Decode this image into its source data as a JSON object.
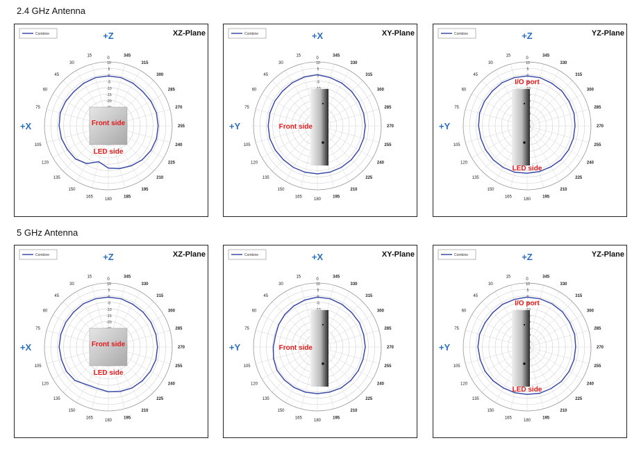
{
  "sections": [
    {
      "title": "2.4 GHz Antenna"
    },
    {
      "title": "5 GHz Antenna"
    }
  ],
  "chart_data": [
    {
      "type": "polar",
      "section": "2.4 GHz Antenna",
      "plane": "XZ-Plane",
      "legend": "Combine",
      "axis_top": "+Z",
      "axis_left": "+X",
      "device_labels": [
        "Front side",
        "LED side"
      ],
      "r_ticks": [
        "10",
        "5",
        "0",
        "-5",
        "-10",
        "-15",
        "-20",
        "-25",
        "-30",
        "-35",
        "-40"
      ],
      "angle_labels": [
        "0",
        "15",
        "30",
        "45",
        "60",
        "75",
        "90",
        "105",
        "120",
        "135",
        "150",
        "165",
        "180",
        "195",
        "210",
        "225",
        "240",
        "255",
        "270",
        "285",
        "300",
        "315",
        "330",
        "345"
      ],
      "angle_label_display": {
        "90": "+X0",
        "330": "315",
        "315": "300",
        "300": "285",
        "285": "270",
        "270": "255",
        "255": "240",
        "240": "225",
        "225": "210",
        "210": "195",
        "195": "185"
      },
      "rlim": [
        -40,
        10
      ],
      "series": [
        {
          "name": "Combine",
          "color": "#3a4aa8",
          "values": [
            -1,
            -1,
            -1.5,
            -2,
            -1.5,
            -1,
            -1.5,
            -2,
            -3,
            -3.5,
            -6,
            -11,
            -7,
            -5.5,
            -4,
            -2.5,
            -1.5,
            -1,
            -1,
            -1,
            -1.5,
            -2,
            -1.5,
            -1
          ]
        }
      ]
    },
    {
      "type": "polar",
      "section": "2.4 GHz Antenna",
      "plane": "XY-Plane",
      "legend": "Combine",
      "axis_top": "+X",
      "axis_left": "+Y",
      "device_labels": [
        "Front side"
      ],
      "r_ticks": [
        "10",
        "5",
        "0",
        "-5",
        "-10",
        "-15",
        "-20",
        "-25",
        "-30",
        "-35",
        "-40"
      ],
      "angle_labels": [
        "0",
        "15",
        "30",
        "45",
        "60",
        "75",
        "90",
        "105",
        "120",
        "135",
        "150",
        "165",
        "180",
        "195",
        "210",
        "225",
        "240",
        "255",
        "270",
        "285",
        "300",
        "315",
        "330",
        "345"
      ],
      "angle_label_display": {
        "90": "+Y0"
      },
      "rlim": [
        -40,
        10
      ],
      "series": [
        {
          "name": "Combine",
          "color": "#3a4aa8",
          "values": [
            0,
            -0.5,
            -1,
            -1.5,
            -1.5,
            -1.5,
            -1.5,
            -1.5,
            -2,
            -2.5,
            -2.5,
            -2.5,
            -2.5,
            -2.5,
            -2.5,
            -2.5,
            -2.5,
            -2.5,
            -2.5,
            -2.5,
            -2.5,
            -2,
            -1.5,
            -1
          ]
        }
      ]
    },
    {
      "type": "polar",
      "section": "2.4 GHz Antenna",
      "plane": "YZ-Plane",
      "legend": "Combine",
      "axis_top": "+Z",
      "axis_left": "+Y",
      "device_labels": [
        "I/O port",
        "LED side"
      ],
      "r_ticks": [
        "10",
        "5",
        "0",
        "-5",
        "-10",
        "-15",
        "-20",
        "-25",
        "-30",
        "-35",
        "-40"
      ],
      "angle_labels": [
        "0",
        "15",
        "30",
        "45",
        "60",
        "75",
        "90",
        "105",
        "120",
        "135",
        "150",
        "165",
        "180",
        "195",
        "210",
        "225",
        "240",
        "255",
        "270",
        "285",
        "300",
        "315",
        "330",
        "345"
      ],
      "angle_label_display": {
        "90": "+Y0"
      },
      "rlim": [
        -40,
        10
      ],
      "series": [
        {
          "name": "Combine",
          "color": "#3a4aa8",
          "values": [
            -1,
            -1,
            -1,
            -1.5,
            -1.5,
            -1.5,
            -2,
            -2.5,
            -2.5,
            -2.5,
            -2.5,
            -2.5,
            -3,
            -3,
            -3,
            -2.5,
            -2.5,
            -2.5,
            -2.5,
            -2,
            -2,
            -1.5,
            -1.5,
            -1
          ]
        }
      ]
    },
    {
      "type": "polar",
      "section": "5 GHz Antenna",
      "plane": "XZ-Plane",
      "legend": "Combine",
      "axis_top": "+Z",
      "axis_left": "+X",
      "device_labels": [
        "Front side",
        "LED side"
      ],
      "r_ticks": [
        "10",
        "5",
        "0",
        "-5",
        "-10",
        "-15",
        "-20",
        "-25",
        "-30",
        "-35",
        "-40"
      ],
      "angle_labels": [
        "0",
        "15",
        "30",
        "45",
        "60",
        "75",
        "90",
        "105",
        "120",
        "135",
        "150",
        "165",
        "180",
        "195",
        "210",
        "225",
        "240",
        "255",
        "270",
        "285",
        "300",
        "315",
        "330",
        "345"
      ],
      "angle_label_display": {
        "90": "+X0"
      },
      "rlim": [
        -40,
        10
      ],
      "series": [
        {
          "name": "Combine",
          "color": "#3a4aa8",
          "values": [
            -1,
            -1,
            -1,
            -1.5,
            -1.5,
            -1.5,
            -1.5,
            -2,
            -2,
            -3,
            -6,
            -6.5,
            -5,
            -4,
            -3,
            -2.5,
            -2,
            -1.5,
            -1.5,
            -1.5,
            -1.5,
            -1.5,
            -1.5,
            -1
          ]
        }
      ]
    },
    {
      "type": "polar",
      "section": "5 GHz Antenna",
      "plane": "XY-Plane",
      "legend": "Combine",
      "axis_top": "+X",
      "axis_left": "+Y",
      "device_labels": [
        "Front side"
      ],
      "r_ticks": [
        "10",
        "5",
        "0",
        "-5",
        "-10",
        "-15",
        "-20",
        "-25",
        "-30",
        "-35",
        "-40"
      ],
      "angle_labels": [
        "0",
        "15",
        "30",
        "45",
        "60",
        "75",
        "90",
        "105",
        "120",
        "135",
        "150",
        "165",
        "180",
        "195",
        "210",
        "225",
        "240",
        "255",
        "270",
        "285",
        "300",
        "315",
        "330",
        "345"
      ],
      "angle_label_display": {
        "90": "+Y0"
      },
      "rlim": [
        -40,
        10
      ],
      "series": [
        {
          "name": "Combine",
          "color": "#3a4aa8",
          "values": [
            -1,
            -2,
            -3,
            -4,
            -5,
            -6,
            -5.5,
            -4.5,
            -3.5,
            -3.5,
            -3.5,
            -3.5,
            -3.5,
            -3.5,
            -3,
            -3,
            -3,
            -3,
            -2.5,
            -2.5,
            -2,
            -2,
            -1.5,
            -1
          ]
        }
      ]
    },
    {
      "type": "polar",
      "section": "5 GHz Antenna",
      "plane": "YZ-Plane",
      "legend": "Combine",
      "axis_top": "+Z",
      "axis_left": "+Y",
      "device_labels": [
        "I/O port",
        "LED side"
      ],
      "r_ticks": [
        "10",
        "5",
        "0",
        "-5",
        "-10",
        "-15",
        "-20",
        "-25",
        "-30",
        "-35",
        "-40"
      ],
      "angle_labels": [
        "0",
        "15",
        "30",
        "45",
        "60",
        "75",
        "90",
        "105",
        "120",
        "135",
        "150",
        "165",
        "180",
        "195",
        "210",
        "225",
        "240",
        "255",
        "270",
        "285",
        "300",
        "315",
        "330",
        "345"
      ],
      "angle_label_display": {
        "90": "+Y0"
      },
      "rlim": [
        -40,
        10
      ],
      "series": [
        {
          "name": "Combine",
          "color": "#3a4aa8",
          "values": [
            -1,
            -1.5,
            -1.5,
            -2,
            -2,
            -1.5,
            -1.5,
            -2,
            -2,
            -2.5,
            -3,
            -3,
            -3,
            -2.5,
            -2.5,
            -2,
            -2,
            -2,
            -2,
            -1.5,
            -1.5,
            -1,
            -1,
            -1
          ]
        }
      ]
    }
  ]
}
